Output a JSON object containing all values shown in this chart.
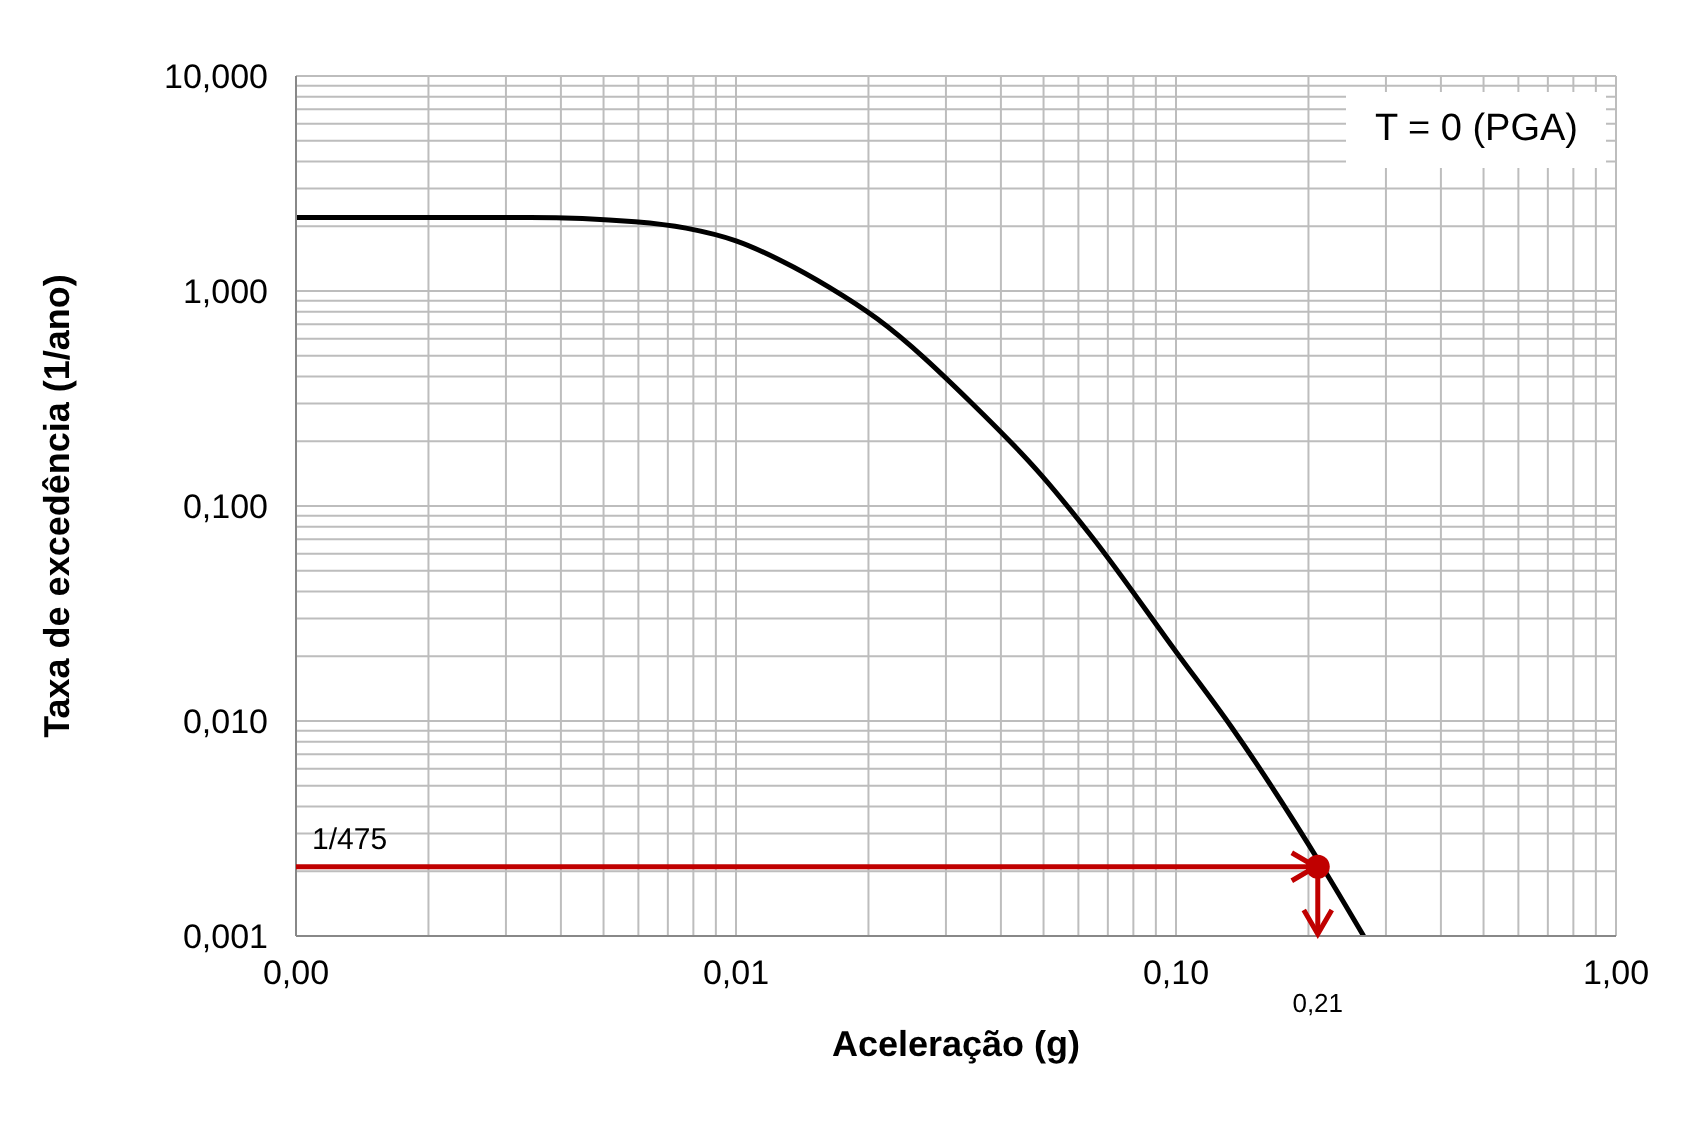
{
  "chart_data": {
    "type": "line",
    "xlabel": "Aceleração (g)",
    "ylabel": "Taxa de excedência (1/ano)",
    "log": "xy",
    "grid": true,
    "marker": "none",
    "line_style": "solid",
    "xlim": [
      0.001,
      1
    ],
    "ylim": [
      0.001,
      10
    ],
    "xticks": [
      {
        "value": 0.001,
        "label": "0,00"
      },
      {
        "value": 0.002,
        "label": null
      },
      {
        "value": 0.003,
        "label": null
      },
      {
        "value": 0.004,
        "label": null
      },
      {
        "value": 0.005,
        "label": null
      },
      {
        "value": 0.006,
        "label": null
      },
      {
        "value": 0.007,
        "label": null
      },
      {
        "value": 0.008,
        "label": null
      },
      {
        "value": 0.009,
        "label": null
      },
      {
        "value": 0.01,
        "label": "0,01"
      },
      {
        "value": 0.02,
        "label": null
      },
      {
        "value": 0.03,
        "label": null
      },
      {
        "value": 0.04,
        "label": null
      },
      {
        "value": 0.05,
        "label": null
      },
      {
        "value": 0.06,
        "label": null
      },
      {
        "value": 0.07,
        "label": null
      },
      {
        "value": 0.08,
        "label": null
      },
      {
        "value": 0.09,
        "label": null
      },
      {
        "value": 0.1,
        "label": "0,10"
      },
      {
        "value": 0.2,
        "label": null
      },
      {
        "value": 0.3,
        "label": null
      },
      {
        "value": 0.4,
        "label": null
      },
      {
        "value": 0.5,
        "label": null
      },
      {
        "value": 0.6,
        "label": null
      },
      {
        "value": 0.7,
        "label": null
      },
      {
        "value": 0.8,
        "label": null
      },
      {
        "value": 0.9,
        "label": null
      },
      {
        "value": 1,
        "label": "1,00"
      }
    ],
    "yticks": [
      {
        "value": 0.001,
        "label": "0,001"
      },
      {
        "value": 0.002,
        "label": null
      },
      {
        "value": 0.003,
        "label": null
      },
      {
        "value": 0.004,
        "label": null
      },
      {
        "value": 0.005,
        "label": null
      },
      {
        "value": 0.006,
        "label": null
      },
      {
        "value": 0.007,
        "label": null
      },
      {
        "value": 0.008,
        "label": null
      },
      {
        "value": 0.009,
        "label": null
      },
      {
        "value": 0.01,
        "label": "0,010"
      },
      {
        "value": 0.02,
        "label": null
      },
      {
        "value": 0.03,
        "label": null
      },
      {
        "value": 0.04,
        "label": null
      },
      {
        "value": 0.05,
        "label": null
      },
      {
        "value": 0.06,
        "label": null
      },
      {
        "value": 0.07,
        "label": null
      },
      {
        "value": 0.08,
        "label": null
      },
      {
        "value": 0.09,
        "label": null
      },
      {
        "value": 0.1,
        "label": "0,100"
      },
      {
        "value": 0.2,
        "label": null
      },
      {
        "value": 0.3,
        "label": null
      },
      {
        "value": 0.4,
        "label": null
      },
      {
        "value": 0.5,
        "label": null
      },
      {
        "value": 0.6,
        "label": null
      },
      {
        "value": 0.7,
        "label": null
      },
      {
        "value": 0.8,
        "label": null
      },
      {
        "value": 0.9,
        "label": null
      },
      {
        "value": 1,
        "label": "1,000"
      },
      {
        "value": 2,
        "label": null
      },
      {
        "value": 3,
        "label": null
      },
      {
        "value": 4,
        "label": null
      },
      {
        "value": 5,
        "label": null
      },
      {
        "value": 6,
        "label": null
      },
      {
        "value": 7,
        "label": null
      },
      {
        "value": 8,
        "label": null
      },
      {
        "value": 9,
        "label": null
      },
      {
        "value": 10,
        "label": "10,000"
      }
    ],
    "series": [
      {
        "color": "#000000",
        "x": [
          0.001,
          0.0034,
          0.0059,
          0.0077,
          0.01,
          0.0127,
          0.0163,
          0.0209,
          0.0344,
          0.0493,
          0.0647,
          0.1,
          0.134,
          0.215,
          0.267
        ],
        "values": [
          2.2,
          2.2,
          2.1,
          1.96,
          1.71,
          1.38,
          1.04,
          0.745,
          0.3,
          0.14,
          0.071,
          0.021,
          0.0093,
          0.0021,
          0.001
        ]
      },
      {
        "type": "scatter",
        "color": "#c00000",
        "marker": "circle",
        "x": [
          0.21
        ],
        "values": [
          0.0021
        ]
      }
    ],
    "annotations": [
      "T = 0 (PGA)",
      "1/475",
      "0,21"
    ]
  }
}
